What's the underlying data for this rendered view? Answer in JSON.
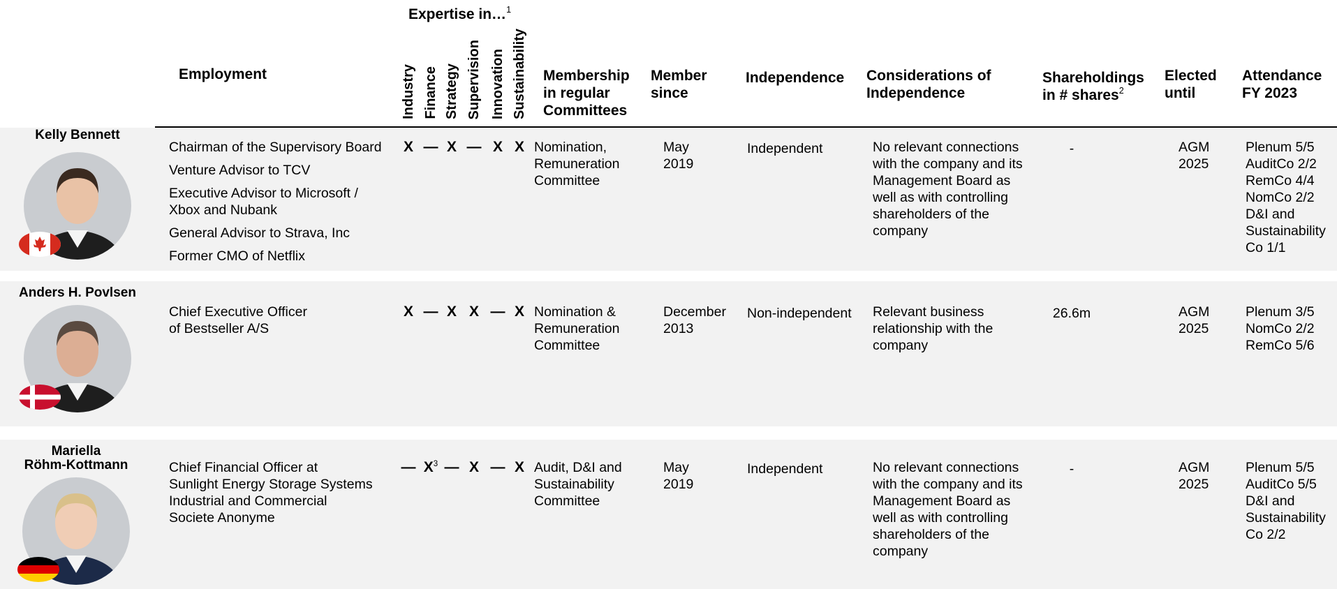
{
  "header": {
    "expertise_title": "Expertise in…",
    "expertise_note": "1",
    "employment": "Employment",
    "expertise_areas": [
      "Industry",
      "Finance",
      "Strategy",
      "Supervision",
      "Innovation",
      "Sustainability"
    ],
    "committees": [
      "Membership",
      "in regular",
      "Committees"
    ],
    "member_since": [
      "Member",
      "since"
    ],
    "independence": [
      "Independence"
    ],
    "considerations": [
      "Considerations of",
      "Independence"
    ],
    "shareholdings": [
      "Shareholdings",
      "in # shares"
    ],
    "shareholdings_note": "2",
    "elected": [
      "Elected",
      "until"
    ],
    "attendance": [
      "Attendance",
      "FY 2023"
    ]
  },
  "rows": [
    {
      "name": [
        "Kelly Bennett"
      ],
      "employment": [
        [
          "Chairman of the Supervisory Board"
        ],
        [
          "Venture Advisor to TCV"
        ],
        [
          "Executive Advisor to Microsoft /",
          "Xbox and Nubank"
        ],
        [
          "General Advisor to Strava, Inc"
        ],
        [
          "Former CMO of Netflix"
        ]
      ],
      "expertise": [
        {
          "mark": "X"
        },
        {
          "mark": "—"
        },
        {
          "mark": "X"
        },
        {
          "mark": "—"
        },
        {
          "mark": "X"
        },
        {
          "mark": "X"
        }
      ],
      "committees": [
        "Nomination,",
        "Remuneration",
        "Committee"
      ],
      "member_since": [
        "May",
        "2019"
      ],
      "independence": "Independent",
      "considerations": [
        "No relevant connections",
        "with the company and its",
        "Management Board as",
        "well as with controlling",
        "shareholders of the",
        "company"
      ],
      "shareholdings": "-",
      "elected": [
        "AGM",
        "2025"
      ],
      "attendance": [
        "Plenum 5/5",
        "AuditCo 2/2",
        "RemCo 4/4",
        "NomCo 2/2",
        "D&I and",
        "Sustainability",
        "Co 1/1"
      ]
    },
    {
      "name": [
        "Anders H. Povlsen"
      ],
      "employment": [
        [
          "Chief Executive Officer",
          "of Bestseller A/S"
        ]
      ],
      "expertise": [
        {
          "mark": "X"
        },
        {
          "mark": "—"
        },
        {
          "mark": "X"
        },
        {
          "mark": "X"
        },
        {
          "mark": "—"
        },
        {
          "mark": "X"
        }
      ],
      "committees": [
        "Nomination &",
        "Remuneration",
        "Committee"
      ],
      "member_since": [
        "December",
        "2013"
      ],
      "independence": "Non-independent",
      "considerations": [
        "Relevant business",
        "relationship with the",
        "company"
      ],
      "shareholdings": "26.6m",
      "elected": [
        "AGM",
        "2025"
      ],
      "attendance": [
        "Plenum 3/5",
        "NomCo 2/2",
        "RemCo 5/6"
      ]
    },
    {
      "name": [
        "Mariella",
        "Röhm-Kottmann"
      ],
      "employment": [
        [
          "Chief Financial Officer at",
          "Sunlight Energy Storage Systems",
          "Industrial and Commercial",
          "Societe Anonyme"
        ]
      ],
      "expertise": [
        {
          "mark": "—"
        },
        {
          "mark": "X",
          "note": "3"
        },
        {
          "mark": "—"
        },
        {
          "mark": "X"
        },
        {
          "mark": "—"
        },
        {
          "mark": "X"
        }
      ],
      "committees": [
        "Audit, D&I and",
        "Sustainability",
        "Committee"
      ],
      "member_since": [
        "May",
        "2019"
      ],
      "independence": "Independent",
      "considerations": [
        "No relevant connections",
        "with the company and its",
        "Management Board as",
        "well as with controlling",
        "shareholders of the",
        "company"
      ],
      "shareholdings": "-",
      "elected": [
        "AGM",
        "2025"
      ],
      "attendance": [
        "Plenum 5/5",
        "AuditCo 5/5",
        "D&I and",
        "Sustainability",
        "Co 2/2"
      ]
    }
  ]
}
